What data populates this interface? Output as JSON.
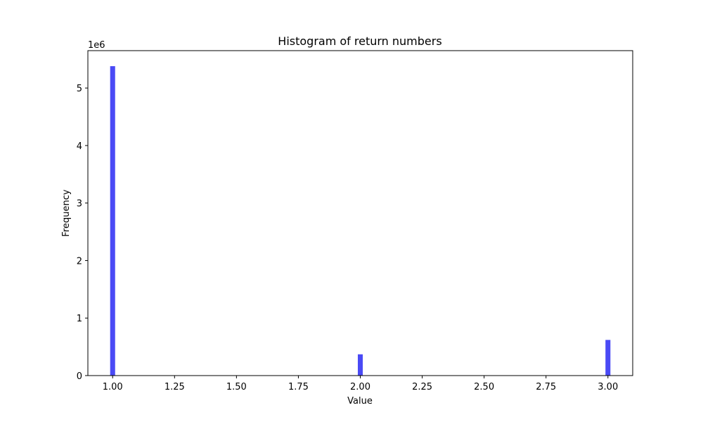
{
  "chart_data": {
    "type": "bar",
    "title": "Histogram of return numbers",
    "xlabel": "Value",
    "ylabel": "Frequency",
    "y_offset_label": "1e6",
    "bar_color": "#4a4af5",
    "bin_width": 0.02,
    "bars": [
      {
        "x": 1.0,
        "value": 5380000
      },
      {
        "x": 2.0,
        "value": 370000
      },
      {
        "x": 3.0,
        "value": 620000
      }
    ],
    "xlim": [
      0.9,
      3.1
    ],
    "ylim": [
      0,
      5650000
    ],
    "xticks": [
      {
        "value": 1.0,
        "label": "1.00"
      },
      {
        "value": 1.25,
        "label": "1.25"
      },
      {
        "value": 1.5,
        "label": "1.50"
      },
      {
        "value": 1.75,
        "label": "1.75"
      },
      {
        "value": 2.0,
        "label": "2.00"
      },
      {
        "value": 2.25,
        "label": "2.25"
      },
      {
        "value": 2.5,
        "label": "2.50"
      },
      {
        "value": 2.75,
        "label": "2.75"
      },
      {
        "value": 3.0,
        "label": "3.00"
      }
    ],
    "yticks": [
      {
        "value": 0,
        "label": "0"
      },
      {
        "value": 1000000,
        "label": "1"
      },
      {
        "value": 2000000,
        "label": "2"
      },
      {
        "value": 3000000,
        "label": "3"
      },
      {
        "value": 4000000,
        "label": "4"
      },
      {
        "value": 5000000,
        "label": "5"
      }
    ],
    "grid": false,
    "legend": "none"
  }
}
